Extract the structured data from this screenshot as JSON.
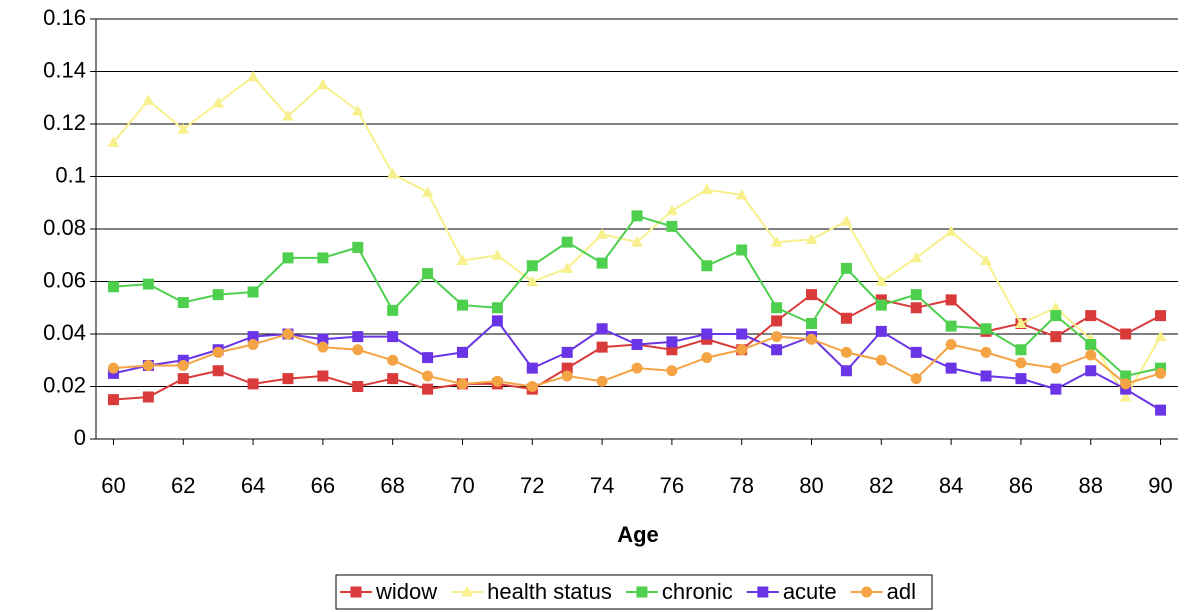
{
  "chart_data": {
    "type": "line",
    "x_label": "Age",
    "x": [
      60,
      61,
      62,
      63,
      64,
      65,
      66,
      67,
      68,
      69,
      70,
      71,
      72,
      73,
      74,
      75,
      76,
      77,
      78,
      79,
      80,
      81,
      82,
      83,
      84,
      85,
      86,
      87,
      88,
      89,
      90
    ],
    "xlim": [
      59.5,
      90.5
    ],
    "xticks": [
      60,
      62,
      64,
      66,
      68,
      70,
      72,
      74,
      76,
      78,
      80,
      82,
      84,
      86,
      88,
      90
    ],
    "ylim": [
      0,
      0.16
    ],
    "yticks": [
      0,
      0.02,
      0.04,
      0.06,
      0.08,
      0.1,
      0.12,
      0.14,
      0.16
    ],
    "grid": true,
    "legend": "bottom",
    "series": [
      {
        "name": "widow",
        "color": "#d93a3a",
        "marker": "square",
        "values": [
          0.015,
          0.016,
          0.023,
          0.026,
          0.021,
          0.023,
          0.024,
          0.02,
          0.023,
          0.019,
          0.021,
          0.021,
          0.019,
          0.027,
          0.035,
          0.036,
          0.034,
          0.038,
          0.034,
          0.045,
          0.055,
          0.046,
          0.053,
          0.05,
          0.053,
          0.041,
          0.044,
          0.039,
          0.047,
          0.04,
          0.047
        ]
      },
      {
        "name": "health status",
        "color": "#f7f08c",
        "marker": "triangle",
        "values": [
          0.113,
          0.129,
          0.118,
          0.128,
          0.138,
          0.123,
          0.135,
          0.125,
          0.101,
          0.094,
          0.068,
          0.07,
          0.06,
          0.065,
          0.078,
          0.075,
          0.087,
          0.095,
          0.093,
          0.075,
          0.076,
          0.083,
          0.06,
          0.069,
          0.079,
          0.068,
          0.044,
          0.05,
          0.038,
          0.016,
          0.039
        ]
      },
      {
        "name": "chronic",
        "color": "#4ed04e",
        "marker": "square",
        "values": [
          0.058,
          0.059,
          0.052,
          0.055,
          0.056,
          0.069,
          0.069,
          0.073,
          0.049,
          0.063,
          0.051,
          0.05,
          0.066,
          0.075,
          0.067,
          0.085,
          0.081,
          0.066,
          0.072,
          0.05,
          0.044,
          0.065,
          0.051,
          0.055,
          0.043,
          0.042,
          0.034,
          0.047,
          0.036,
          0.024,
          0.027
        ]
      },
      {
        "name": "acute",
        "color": "#6a35e6",
        "marker": "square",
        "values": [
          0.025,
          0.028,
          0.03,
          0.034,
          0.039,
          0.04,
          0.038,
          0.039,
          0.039,
          0.031,
          0.033,
          0.045,
          0.027,
          0.033,
          0.042,
          0.036,
          0.037,
          0.04,
          0.04,
          0.034,
          0.039,
          0.026,
          0.041,
          0.033,
          0.027,
          0.024,
          0.023,
          0.019,
          0.026,
          0.019,
          0.011
        ]
      },
      {
        "name": "adl",
        "color": "#f5a445",
        "marker": "circle",
        "values": [
          0.027,
          0.028,
          0.028,
          0.033,
          0.036,
          0.04,
          0.035,
          0.034,
          0.03,
          0.024,
          0.021,
          0.022,
          0.02,
          0.024,
          0.022,
          0.027,
          0.026,
          0.031,
          0.034,
          0.039,
          0.038,
          0.033,
          0.03,
          0.023,
          0.036,
          0.033,
          0.029,
          0.027,
          0.032,
          0.021,
          0.025
        ]
      }
    ]
  }
}
